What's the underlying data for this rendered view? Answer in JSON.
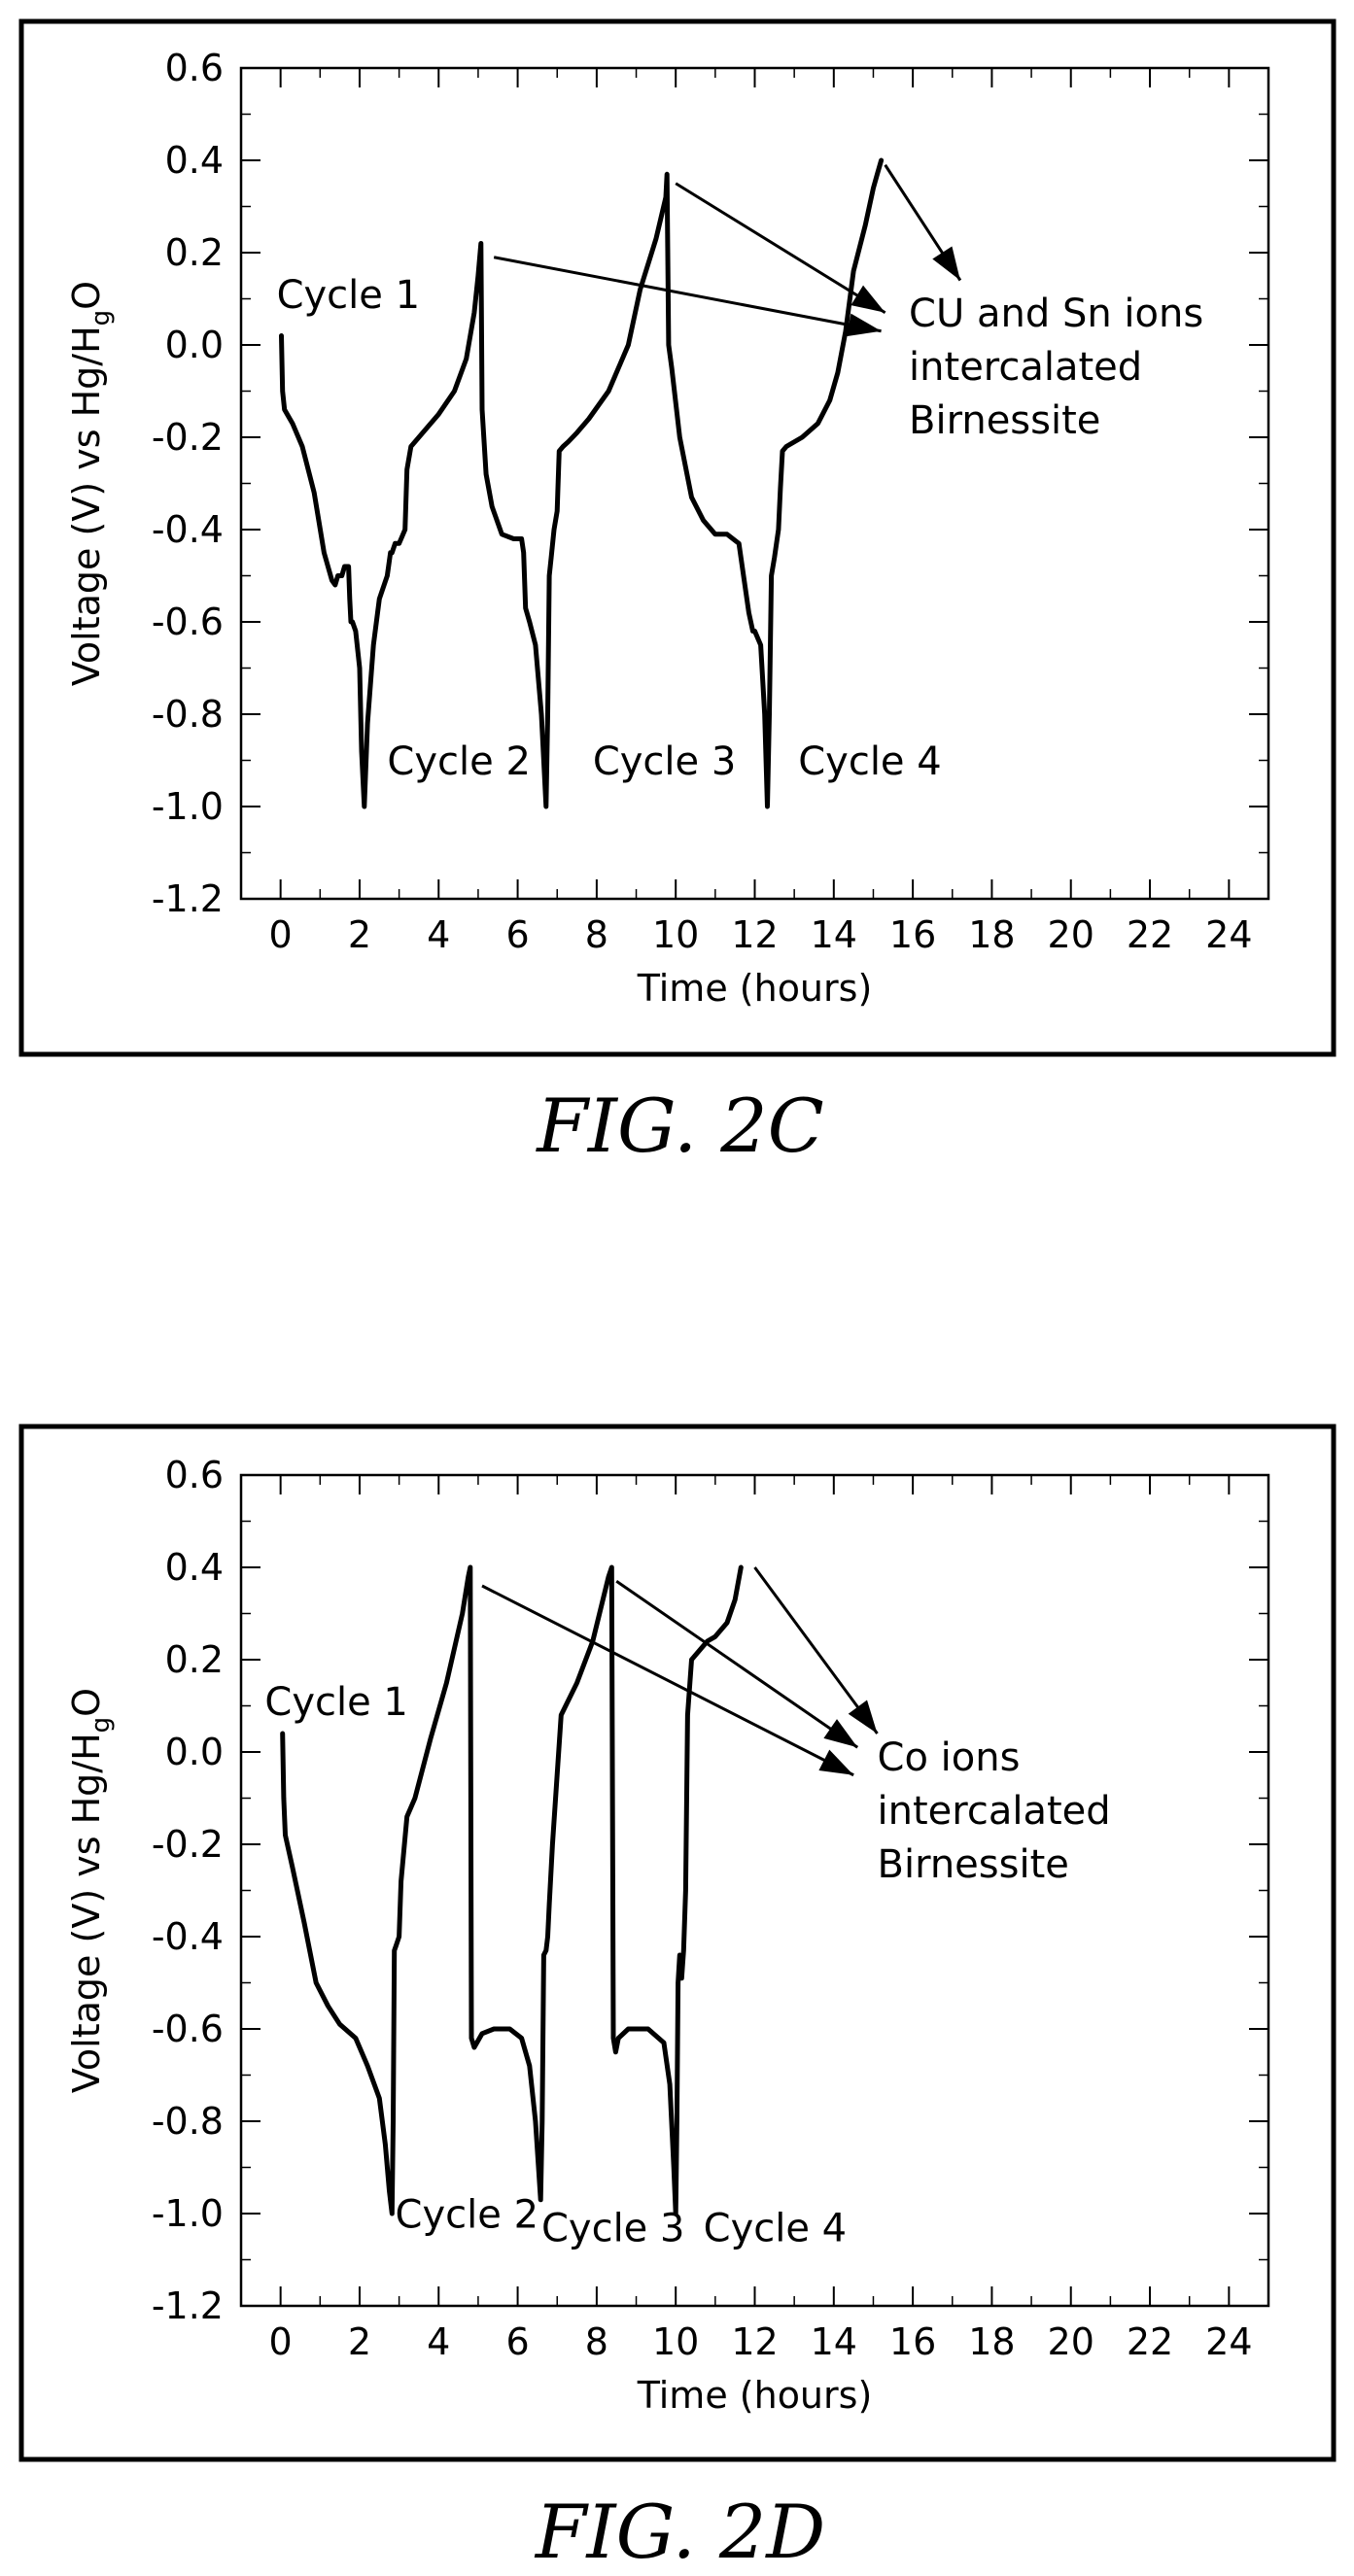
{
  "charts": [
    {
      "type": "line",
      "xlabel": "Time (hours)",
      "ylabel_parts": [
        "Voltage (V) vs Hg/H",
        "g",
        "O"
      ],
      "xlim": [
        -1,
        25
      ],
      "ylim": [
        -1.2,
        0.6
      ],
      "x_ticks": [
        0,
        2,
        4,
        6,
        8,
        10,
        12,
        14,
        16,
        18,
        20,
        22,
        24
      ],
      "y_ticks": [
        "0.6",
        "0.4",
        "0.2",
        "0.0",
        "-0.2",
        "-0.4",
        "-0.6",
        "-0.8",
        "-1.0",
        "-1.2"
      ],
      "caption": "FIG. 2C",
      "cycle_labels": [
        {
          "text": "Cycle 1",
          "x": -0.1,
          "y": 0.08
        },
        {
          "text": "Cycle 2",
          "x": 2.7,
          "y": -0.93
        },
        {
          "text": "Cycle 3",
          "x": 7.9,
          "y": -0.93
        },
        {
          "text": "Cycle 4",
          "x": 13.1,
          "y": -0.93
        }
      ],
      "annotation_lines": [
        "CU and Sn ions",
        "intercalated",
        "Birnessite"
      ],
      "annotation_anchor": {
        "x": 15.9,
        "y": 0.04
      },
      "arrows": [
        {
          "from": [
            5.4,
            0.19
          ],
          "to": [
            15.2,
            0.03
          ]
        },
        {
          "from": [
            10.0,
            0.35
          ],
          "to": [
            15.3,
            0.07
          ]
        },
        {
          "from": [
            15.3,
            0.39
          ],
          "to": [
            17.2,
            0.14
          ]
        }
      ],
      "series": [
        {
          "x": [
            0.02,
            0.05,
            0.1,
            0.3,
            0.55,
            0.85,
            1.1,
            1.3,
            1.38,
            1.45,
            1.55,
            1.62,
            1.72,
            1.75,
            1.78,
            1.82,
            1.9,
            2.0,
            2.05,
            2.12,
            2.2,
            2.35,
            2.5,
            2.7,
            2.78,
            2.82,
            2.9,
            3.0,
            3.15,
            3.2,
            3.3,
            3.6,
            4.0,
            4.4,
            4.7,
            4.9,
            5.0,
            5.07,
            5.1,
            5.2,
            5.35,
            5.6,
            5.9,
            6.1,
            6.15,
            6.2,
            6.3,
            6.45,
            6.6,
            6.72,
            6.76,
            6.8,
            6.85,
            6.92,
            7.0,
            7.05,
            7.15,
            7.28,
            7.5,
            7.8,
            8.3,
            8.8,
            9.1,
            9.5,
            9.75,
            9.78,
            9.82,
            9.9,
            10.1,
            10.4,
            10.7,
            11.0,
            11.3,
            11.6,
            11.85,
            11.95,
            12.0,
            12.15,
            12.25,
            12.32,
            12.37,
            12.42,
            12.5,
            12.6,
            12.65,
            12.7,
            12.8,
            13.2,
            13.6,
            13.9,
            14.1,
            14.3,
            14.5,
            14.8,
            15.0,
            15.1,
            15.2
          ],
          "y": [
            0.02,
            -0.1,
            -0.14,
            -0.17,
            -0.22,
            -0.32,
            -0.45,
            -0.51,
            -0.52,
            -0.5,
            -0.5,
            -0.48,
            -0.48,
            -0.55,
            -0.6,
            -0.6,
            -0.62,
            -0.7,
            -0.88,
            -1.0,
            -0.82,
            -0.65,
            -0.55,
            -0.5,
            -0.45,
            -0.45,
            -0.43,
            -0.43,
            -0.4,
            -0.27,
            -0.22,
            -0.19,
            -0.15,
            -0.1,
            -0.03,
            0.07,
            0.15,
            0.22,
            -0.14,
            -0.28,
            -0.35,
            -0.41,
            -0.42,
            -0.42,
            -0.45,
            -0.57,
            -0.6,
            -0.65,
            -0.8,
            -1.0,
            -0.8,
            -0.5,
            -0.46,
            -0.4,
            -0.36,
            -0.23,
            -0.22,
            -0.21,
            -0.19,
            -0.16,
            -0.1,
            0.0,
            0.12,
            0.23,
            0.32,
            0.37,
            0.0,
            -0.05,
            -0.2,
            -0.33,
            -0.38,
            -0.41,
            -0.41,
            -0.43,
            -0.58,
            -0.62,
            -0.62,
            -0.65,
            -0.8,
            -1.0,
            -0.8,
            -0.5,
            -0.46,
            -0.4,
            -0.31,
            -0.23,
            -0.22,
            -0.2,
            -0.17,
            -0.12,
            -0.06,
            0.03,
            0.16,
            0.26,
            0.34,
            0.37,
            0.4
          ]
        }
      ]
    },
    {
      "type": "line",
      "xlabel": "Time (hours)",
      "ylabel_parts": [
        "Voltage (V) vs Hg/H",
        "g",
        "O"
      ],
      "xlim": [
        -1,
        25
      ],
      "ylim": [
        -1.2,
        0.6
      ],
      "x_ticks": [
        0,
        2,
        4,
        6,
        8,
        10,
        12,
        14,
        16,
        18,
        20,
        22,
        24
      ],
      "y_ticks": [
        "0.6",
        "0.4",
        "0.2",
        "0.0",
        "-0.2",
        "-0.4",
        "-0.6",
        "-0.8",
        "-1.0",
        "-1.2"
      ],
      "caption": "FIG. 2D",
      "cycle_labels": [
        {
          "text": "Cycle 1",
          "x": -0.4,
          "y": 0.08
        },
        {
          "text": "Cycle 2",
          "x": 2.9,
          "y": -1.03
        },
        {
          "text": "Cycle 3",
          "x": 6.6,
          "y": -1.06
        },
        {
          "text": "Cycle 4",
          "x": 10.7,
          "y": -1.06
        }
      ],
      "annotation_lines": [
        "Co ions",
        "intercalated",
        "Birnessite"
      ],
      "annotation_anchor": {
        "x": 15.1,
        "y": -0.04
      },
      "arrows": [
        {
          "from": [
            5.1,
            0.36
          ],
          "to": [
            14.5,
            -0.05
          ]
        },
        {
          "from": [
            8.5,
            0.37
          ],
          "to": [
            14.6,
            0.01
          ]
        },
        {
          "from": [
            12.0,
            0.4
          ],
          "to": [
            15.1,
            0.04
          ]
        }
      ],
      "series": [
        {
          "x": [
            0.05,
            0.08,
            0.12,
            0.3,
            0.6,
            0.9,
            1.2,
            1.5,
            1.9,
            2.2,
            2.5,
            2.65,
            2.75,
            2.82,
            2.85,
            2.88,
            2.92,
            3.0,
            3.05,
            3.2,
            3.4,
            3.8,
            4.2,
            4.6,
            4.75,
            4.8,
            4.83,
            4.9,
            5.1,
            5.4,
            5.8,
            6.1,
            6.3,
            6.45,
            6.58,
            6.62,
            6.66,
            6.72,
            6.76,
            6.8,
            6.88,
            7.1,
            7.5,
            7.9,
            8.3,
            8.38,
            8.42,
            8.48,
            8.55,
            8.8,
            9.3,
            9.7,
            9.85,
            9.95,
            10.0,
            10.03,
            10.06,
            10.1,
            10.15,
            10.2,
            10.25,
            10.3,
            10.4,
            10.6,
            10.8,
            11.0,
            11.3,
            11.5,
            11.65
          ],
          "y": [
            0.04,
            -0.1,
            -0.18,
            -0.25,
            -0.37,
            -0.5,
            -0.55,
            -0.59,
            -0.62,
            -0.68,
            -0.75,
            -0.85,
            -0.95,
            -1.0,
            -0.8,
            -0.43,
            -0.42,
            -0.4,
            -0.28,
            -0.14,
            -0.1,
            0.03,
            0.15,
            0.3,
            0.38,
            0.4,
            -0.62,
            -0.64,
            -0.61,
            -0.6,
            -0.6,
            -0.62,
            -0.68,
            -0.8,
            -0.97,
            -0.8,
            -0.44,
            -0.43,
            -0.4,
            -0.33,
            -0.2,
            0.08,
            0.15,
            0.24,
            0.38,
            0.4,
            -0.62,
            -0.65,
            -0.62,
            -0.6,
            -0.6,
            -0.63,
            -0.72,
            -0.9,
            -1.0,
            -0.8,
            -0.5,
            -0.44,
            -0.49,
            -0.43,
            -0.3,
            0.08,
            0.2,
            0.22,
            0.24,
            0.25,
            0.28,
            0.33,
            0.4
          ]
        }
      ]
    }
  ]
}
